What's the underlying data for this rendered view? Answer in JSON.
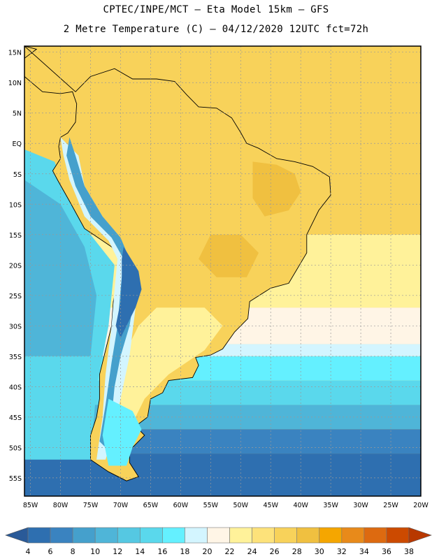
{
  "header": {
    "line1": "CPTEC/INPE/MCT –  Eta Model 15km – GFS",
    "line2": "2 Metre Temperature (C) – 04/12/2020 12UTC fct=72h"
  },
  "axes": {
    "lat_labels": [
      "15N",
      "10N",
      "5N",
      "EQ",
      "5S",
      "10S",
      "15S",
      "20S",
      "25S",
      "30S",
      "35S",
      "40S",
      "45S",
      "50S",
      "55S"
    ],
    "lat_values": [
      15,
      10,
      5,
      0,
      -5,
      -10,
      -15,
      -20,
      -25,
      -30,
      -35,
      -40,
      -45,
      -50,
      -55
    ],
    "lon_labels": [
      "85W",
      "80W",
      "75W",
      "70W",
      "65W",
      "60W",
      "55W",
      "50W",
      "45W",
      "40W",
      "35W",
      "30W",
      "25W",
      "20W"
    ],
    "lon_values": [
      -85,
      -80,
      -75,
      -70,
      -65,
      -60,
      -55,
      -50,
      -45,
      -40,
      -35,
      -30,
      -25,
      -20
    ]
  },
  "colorbar": {
    "labels": [
      "4",
      "6",
      "8",
      "10",
      "12",
      "14",
      "16",
      "18",
      "20",
      "22",
      "24",
      "26",
      "28",
      "30",
      "32",
      "34",
      "36",
      "38"
    ],
    "colors": [
      "#2e6fb0",
      "#3a83c0",
      "#45a0cc",
      "#4fb5d8",
      "#55c8e2",
      "#5ad8ec",
      "#64f0ff",
      "#d3f5ff",
      "#fff5e6",
      "#fff29a",
      "#fde27a",
      "#f8d25a",
      "#f0c040",
      "#f5a600",
      "#e88a1a",
      "#dd6a10",
      "#cc4a00"
    ],
    "low_color": "#2a5a98",
    "high_color": "#b83800"
  },
  "map": {
    "extent": {
      "lon_min": -86,
      "lon_max": -20,
      "lat_min": -58,
      "lat_max": 16
    },
    "colors": {
      "tropic_warm": "#f8d25a",
      "warm": "#fde27a",
      "hot": "#f0c040",
      "hotter": "#f5a600",
      "mild": "#fff29a",
      "cool": "#fff5e6",
      "cold_light": "#d3f5ff",
      "cyan": "#64f0ff",
      "ocean_mid": "#5ad8ec",
      "ocean_deep": "#4fb5d8",
      "ocean_far": "#3a83c0",
      "ocean_south": "#2e6fb0",
      "andes": "#45a0cc",
      "andes_peak": "#2e6fb0"
    }
  }
}
